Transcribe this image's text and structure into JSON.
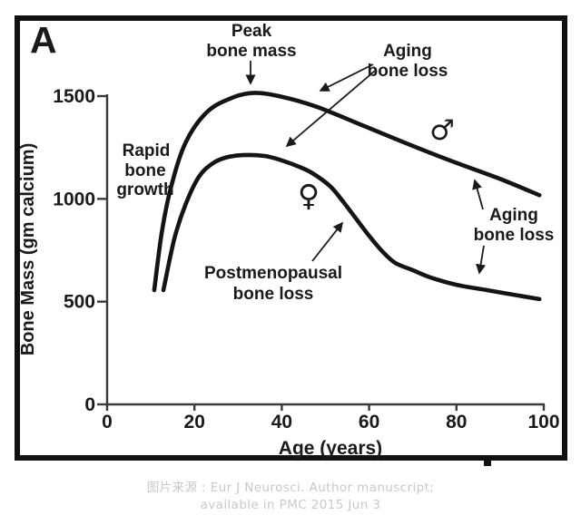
{
  "figure": {
    "panel_label": "A"
  },
  "chart_data": {
    "type": "line",
    "title": "",
    "xlabel": "Age (years)",
    "ylabel": "Bone Mass (gm calcium)",
    "xlim": [
      0,
      100
    ],
    "ylim": [
      0,
      1600
    ],
    "x_ticks": [
      0,
      20,
      40,
      60,
      80,
      100
    ],
    "y_ticks": [
      0,
      500,
      1000,
      1500
    ],
    "grid": false,
    "legend": "none",
    "series": [
      {
        "name": "male",
        "symbol": "♂",
        "points": [
          [
            10.8,
            556
          ],
          [
            12.5,
            834
          ],
          [
            14.6,
            1054
          ],
          [
            18,
            1275
          ],
          [
            23,
            1425
          ],
          [
            29,
            1495
          ],
          [
            34,
            1516
          ],
          [
            40,
            1497
          ],
          [
            48,
            1448
          ],
          [
            59,
            1353
          ],
          [
            69,
            1266
          ],
          [
            79,
            1183
          ],
          [
            90,
            1097
          ],
          [
            99,
            1018
          ]
        ]
      },
      {
        "name": "female",
        "symbol": "♀",
        "points": [
          [
            12.9,
            556
          ],
          [
            15.4,
            807
          ],
          [
            18,
            975
          ],
          [
            21,
            1107
          ],
          [
            24,
            1170
          ],
          [
            27,
            1200
          ],
          [
            31,
            1213
          ],
          [
            36,
            1209
          ],
          [
            40,
            1187
          ],
          [
            44,
            1156
          ],
          [
            47,
            1125
          ],
          [
            51,
            1063
          ],
          [
            54,
            988
          ],
          [
            57,
            904
          ],
          [
            60,
            820
          ],
          [
            63,
            745
          ],
          [
            66,
            688
          ],
          [
            70,
            653
          ],
          [
            74,
            618
          ],
          [
            80,
            582
          ],
          [
            87,
            556
          ],
          [
            93,
            534
          ],
          [
            99,
            512
          ]
        ]
      }
    ]
  },
  "annotations": {
    "peak": {
      "line1": "Peak",
      "line2": "bone mass"
    },
    "aging_top": {
      "line1": "Aging",
      "line2": "bone loss"
    },
    "rapid": {
      "line1": "Rapid",
      "line2": "bone",
      "line3": "growth"
    },
    "postmenopausal": {
      "line1": "Postmenopausal",
      "line2": "bone loss"
    },
    "aging_right": {
      "line1": "Aging",
      "line2": "bone loss"
    },
    "male_symbol": "♂",
    "female_symbol": "♀"
  },
  "axes": {
    "y_label": "Bone Mass (gm calcium)",
    "x_label": "Age (years)"
  },
  "caption": {
    "line1": "图片来源 : Eur J Neurosci. Author manuscript;",
    "line2": "available in PMC 2015 Jun 3"
  },
  "colors": {
    "curve": "#141414",
    "axis": "#3a3a3a",
    "text": "#1a1a1a",
    "caption": "#c6cac8",
    "frame": "#111111"
  }
}
